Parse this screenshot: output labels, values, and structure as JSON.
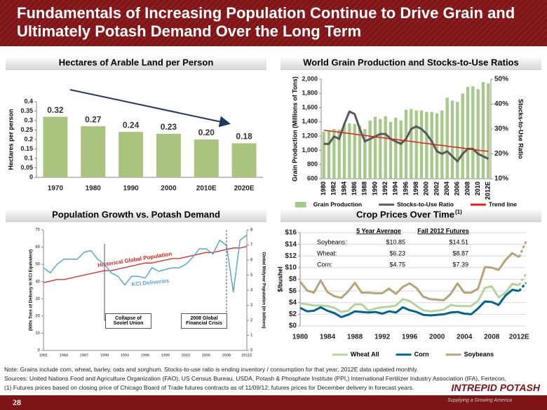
{
  "header": {
    "title": "Fundamentals of Increasing Population Continue to Drive Grain and Ultimately Potash Demand Over the Long Term"
  },
  "chart_data": [
    {
      "type": "bar",
      "title": "Hectares of Arable Land per Person",
      "ylabel": "Hectares per person",
      "categories": [
        "1970",
        "1980",
        "1990",
        "2000",
        "2010E",
        "2020E"
      ],
      "values": [
        0.32,
        0.27,
        0.24,
        0.23,
        0.2,
        0.18
      ],
      "value_labels": [
        "0.32",
        "0.27",
        "0.24",
        "0.23",
        "0.20",
        "0.18"
      ],
      "color": "#a9c47f",
      "ylim": [
        0,
        0.4
      ],
      "yticks": [
        0,
        0.05,
        0.1,
        0.15,
        0.2,
        0.25,
        0.3,
        0.35,
        0.4
      ],
      "grid": false
    },
    {
      "type": "combo",
      "title": "World Grain Production and Stocks-to-Use Ratios",
      "ylabel": "Grain Production (Millions of Tons)",
      "y2label": "Stocks-to-Use Ratio",
      "categories": [
        "1980",
        null,
        "1982",
        null,
        "1984",
        null,
        "1986",
        null,
        "1988",
        null,
        "1990",
        null,
        "1992",
        null,
        "1994",
        null,
        "1996",
        null,
        "1998",
        null,
        "2000",
        null,
        "2002",
        null,
        "2004",
        null,
        "2006",
        null,
        "2008",
        null,
        "2010",
        null,
        "2012E"
      ],
      "series": [
        {
          "name": "Grain Production",
          "type": "bar",
          "color": "#a6c98a",
          "values": [
            1260,
            1280,
            1300,
            1290,
            1370,
            1380,
            1370,
            1350,
            1300,
            1420,
            1470,
            1440,
            1480,
            1400,
            1460,
            1420,
            1570,
            1580,
            1560,
            1560,
            1540,
            1540,
            1520,
            1560,
            1740,
            1700,
            1680,
            1800,
            1890,
            1900,
            1860,
            1960,
            1940
          ]
        },
        {
          "name": "Stocks-to-Use Ratio",
          "type": "line",
          "axis": "y2",
          "color": "#595959",
          "values": [
            24,
            24,
            27,
            26,
            32,
            37,
            36,
            30,
            25,
            26,
            27,
            28,
            28,
            26,
            25,
            24,
            26,
            30,
            31,
            30,
            28,
            25,
            21,
            20,
            21,
            19,
            17,
            20,
            22,
            22,
            20,
            19,
            18
          ]
        },
        {
          "name": "Trend line",
          "type": "line",
          "axis": "y2",
          "color": "#e0201b",
          "values": [
            29.5,
            29.2,
            29.0,
            28.7,
            28.4,
            28.2,
            27.9,
            27.6,
            27.4,
            27.1,
            26.8,
            26.6,
            26.3,
            26.0,
            25.8,
            25.5,
            25.2,
            25.0,
            24.7,
            24.4,
            24.2,
            23.9,
            23.6,
            23.4,
            23.1,
            22.8,
            22.6,
            22.3,
            22.0,
            21.8,
            21.5,
            21.2,
            21.0
          ]
        }
      ],
      "ylim": [
        600,
        2000
      ],
      "yticks": [
        600,
        800,
        {
          "value": 1000,
          "label": "1,000"
        },
        {
          "value": 1200,
          "label": "1,200"
        },
        {
          "value": 1400,
          "label": "1,400"
        },
        {
          "value": 1600,
          "label": "1,600"
        },
        {
          "value": 1800,
          "label": "1,800"
        },
        {
          "value": 2000,
          "label": "2,000"
        }
      ],
      "y2lim": [
        10,
        50
      ],
      "y2ticks": [
        {
          "value": 10,
          "label": "10%"
        },
        {
          "value": 20,
          "label": "20%"
        },
        {
          "value": 30,
          "label": "30%"
        },
        {
          "value": 40,
          "label": "40%"
        },
        {
          "value": 50,
          "label": "50%"
        }
      ],
      "legend": "bottom",
      "grid": false
    },
    {
      "type": "line",
      "title": "Population Growth vs. Potash Demand",
      "ylabel": "(000s Tons of Delivery in KCl Equivalent)",
      "y2label": "Global Midyear Population (in billions)",
      "categories": [
        "1981",
        null,
        null,
        "1984",
        null,
        null,
        "1987",
        null,
        null,
        "1990",
        null,
        null,
        "1993",
        null,
        null,
        "1996",
        null,
        null,
        "1999",
        null,
        null,
        "2002",
        null,
        null,
        "2005",
        null,
        null,
        "2008",
        null,
        null,
        "2011E"
      ],
      "series": [
        {
          "name": "Historical Global Population",
          "axis": "y2",
          "color": "#e0201b",
          "values": [
            4.5,
            4.6,
            4.7,
            4.7,
            4.8,
            4.9,
            5.0,
            5.1,
            5.2,
            5.3,
            5.3,
            5.4,
            5.5,
            5.6,
            5.7,
            5.8,
            5.8,
            5.9,
            6.0,
            6.1,
            6.1,
            6.2,
            6.3,
            6.4,
            6.5,
            6.5,
            6.6,
            6.7,
            6.8,
            6.8,
            6.9
          ]
        },
        {
          "name": "KCl Deliveries",
          "color": "#5aa5da",
          "values": [
            48,
            45,
            50,
            53,
            53,
            53,
            57,
            58,
            53,
            50,
            45,
            43,
            38,
            43,
            43,
            42,
            48,
            46,
            47,
            48,
            48,
            50,
            54,
            59,
            59,
            56,
            64,
            61,
            34,
            64,
            67
          ]
        }
      ],
      "annotations": [
        "Collapse of Soviet Union",
        "2008 Global Financial Crisis"
      ],
      "ylim": [
        0,
        70
      ],
      "yticks": [
        0,
        10,
        20,
        30,
        40,
        50,
        60,
        70
      ],
      "y2lim": [
        0,
        8
      ],
      "y2ticks": [
        0,
        1,
        2,
        3,
        4,
        5,
        6,
        7,
        8
      ],
      "grid": false
    },
    {
      "type": "line",
      "title": "Crop Prices Over Time",
      "title_note": "(1)",
      "ylabel": "$/bushel",
      "categories": [
        "1980",
        null,
        null,
        null,
        "1984",
        null,
        null,
        null,
        "1988",
        null,
        null,
        null,
        "1992",
        null,
        null,
        null,
        "1996",
        null,
        null,
        null,
        "2000",
        null,
        null,
        null,
        "2004",
        null,
        null,
        null,
        "2008",
        null,
        null,
        null,
        "2012E",
        null
      ],
      "series": [
        {
          "name": "Wheat All",
          "color": "#b5d39b",
          "values": [
            3.9,
            3.7,
            3.5,
            3.5,
            3.4,
            3.1,
            2.4,
            2.6,
            3.7,
            3.7,
            2.6,
            3.0,
            3.2,
            3.3,
            3.5,
            4.6,
            4.3,
            3.4,
            2.7,
            2.5,
            2.6,
            2.8,
            3.6,
            3.4,
            3.4,
            3.4,
            4.3,
            6.5,
            6.8,
            4.9,
            5.7,
            7.2,
            7.0,
            8.9
          ]
        },
        {
          "name": "Corn",
          "color": "#00658e",
          "values": [
            3.1,
            2.5,
            2.6,
            3.2,
            2.6,
            2.2,
            1.5,
            1.9,
            2.5,
            2.4,
            2.3,
            2.4,
            2.1,
            2.5,
            2.3,
            3.2,
            2.7,
            2.4,
            1.9,
            1.8,
            1.9,
            2.0,
            2.3,
            2.4,
            2.1,
            2.0,
            3.0,
            4.2,
            4.1,
            3.6,
            5.2,
            6.2,
            6.0,
            7.4
          ]
        },
        {
          "name": "Soybeans",
          "color": "#b5a37a",
          "values": [
            7.6,
            6.1,
            5.7,
            7.8,
            5.8,
            5.1,
            4.8,
            5.9,
            7.4,
            5.7,
            5.7,
            5.6,
            5.6,
            6.4,
            5.5,
            6.7,
            7.3,
            6.5,
            5.0,
            4.6,
            4.5,
            4.4,
            5.5,
            7.3,
            5.7,
            5.7,
            6.4,
            10.1,
            10.0,
            9.6,
            11.3,
            12.5,
            11.8,
            14.5
          ]
        }
      ],
      "table": {
        "columns": [
          "5 Year Average",
          "Fall 2012  Futures"
        ],
        "rows": [
          [
            "Soybeans:",
            "$10.85",
            "$14.51"
          ],
          [
            "Wheat:",
            "$6.23",
            "$8.87"
          ],
          [
            "Corn:",
            "$4.75",
            "$7.39"
          ]
        ]
      },
      "ylim": [
        0,
        16
      ],
      "yticks": [
        {
          "value": 0,
          "label": "$0"
        },
        {
          "value": 2,
          "label": "$2"
        },
        {
          "value": 4,
          "label": "$4"
        },
        {
          "value": 6,
          "label": "$6"
        },
        {
          "value": 8,
          "label": "$8"
        },
        {
          "value": 10,
          "label": "$10"
        },
        {
          "value": 12,
          "label": "$12"
        },
        {
          "value": 14,
          "label": "$14"
        },
        {
          "value": 16,
          "label": "$16"
        }
      ],
      "legend": "bottom",
      "grid": true
    }
  ],
  "notes": [
    "Note: Grains include corn, wheat, barley, oats and sorghum. Stocks-to-use ratio is ending inventory / consumption for that year; 2012E data updated monthly.",
    "Sources: United Nations Food and Agriculture Organization (FAO), US Census Bureau, USDA, Potash & Phosphate Institute (PPI,) International Fertilizer Industry Association (IFA), Fertecon,",
    "(1) Futures prices based on closing price of Chicago Board of Trade futures contracts as of 11/09/12; futures prices for December delivery in forecast years."
  ],
  "footer": {
    "page": "28",
    "logo": "INTREPID POTASH",
    "tagline": "Supplying a Growing America"
  }
}
